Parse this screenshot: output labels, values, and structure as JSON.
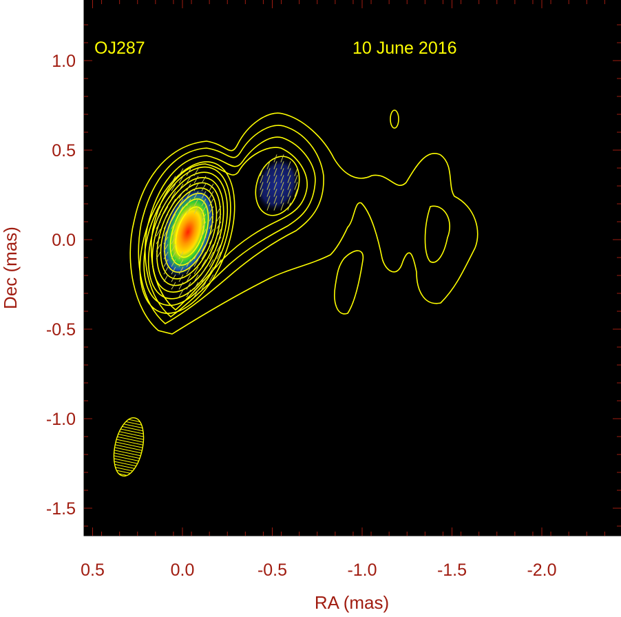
{
  "chart_data": {
    "type": "contour-map",
    "source_label": "OJ287",
    "date_label": "10 June 2016",
    "xlabel": "RA (mas)",
    "ylabel": "Dec (mas)",
    "xlim": [
      0.5,
      -2.45
    ],
    "ylim": [
      -1.65,
      1.32
    ],
    "x_ticks": [
      0.5,
      0.0,
      -0.5,
      -1.0,
      -1.5,
      -2.0
    ],
    "x_tick_labels": [
      "0.5",
      "0.0",
      "-0.5",
      "-1.0",
      "-1.5",
      "-2.0"
    ],
    "y_ticks": [
      1.0,
      0.5,
      0.0,
      -0.5,
      -1.0,
      -1.5
    ],
    "y_tick_labels": [
      "1.0",
      "0.5",
      "0.0",
      "-0.5",
      "-1.0",
      "-1.5"
    ],
    "core_position": [
      -0.03,
      0.04
    ],
    "jet_components": [
      {
        "name": "core",
        "x": -0.03,
        "y": 0.04
      },
      {
        "name": "knot",
        "x": -0.55,
        "y": 0.32
      }
    ],
    "beam": {
      "x": 0.3,
      "y": -1.15,
      "major_mas": 0.33,
      "minor_mas": 0.16,
      "pa_deg": 10
    },
    "colors": {
      "background": "#000000",
      "axis": "#a01c10",
      "contour": "#ffff00",
      "frame": "#000000"
    }
  }
}
